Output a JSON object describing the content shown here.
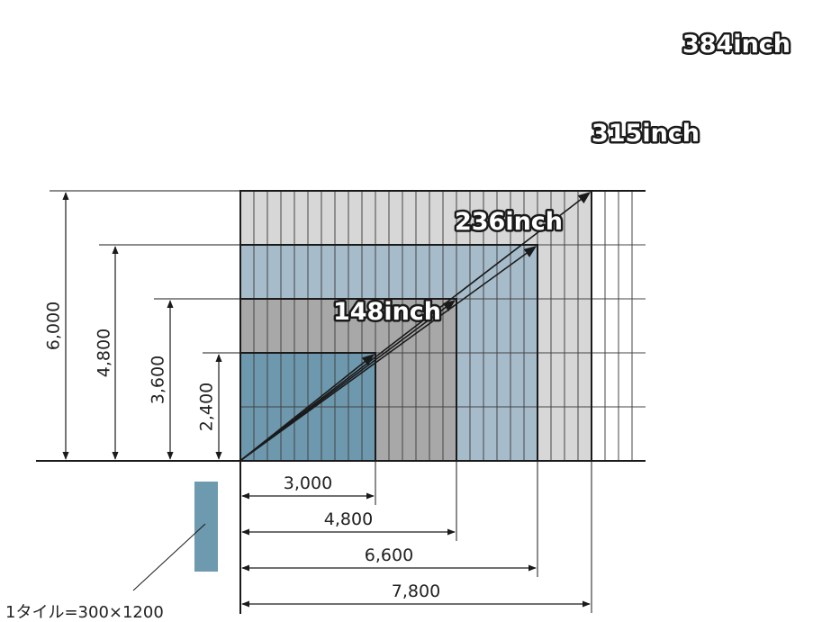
{
  "diagram": {
    "tile": {
      "width_mm": 300,
      "height_mm": 1200,
      "color": "#6d9aae"
    },
    "wall": {
      "width_mm": 9000,
      "height_mm": 6000
    },
    "screens": [
      {
        "name": "148inch",
        "label": "148inch",
        "width_mm": 3000,
        "height_mm": 2400,
        "width_label": "3,000",
        "height_label": "2,400",
        "color": "#6d98ae"
      },
      {
        "name": "236inch",
        "label": "236inch",
        "width_mm": 4800,
        "height_mm": 3600,
        "width_label": "4,800",
        "height_label": "3,600",
        "color": "#a8a8a8"
      },
      {
        "name": "315inch",
        "label": "315inch",
        "width_mm": 6600,
        "height_mm": 4800,
        "width_label": "6,600",
        "height_label": "4,800",
        "color": "#a7bccb"
      },
      {
        "name": "384inch",
        "label": "384inch",
        "width_mm": 7800,
        "height_mm": 6000,
        "width_label": "7,800",
        "height_label": "6,000",
        "color": "#d7d7d7"
      }
    ],
    "legend": {
      "text": "1タイル=300×1200"
    },
    "colors": {
      "line": "#1a1a1a",
      "grid": "#444444"
    }
  }
}
